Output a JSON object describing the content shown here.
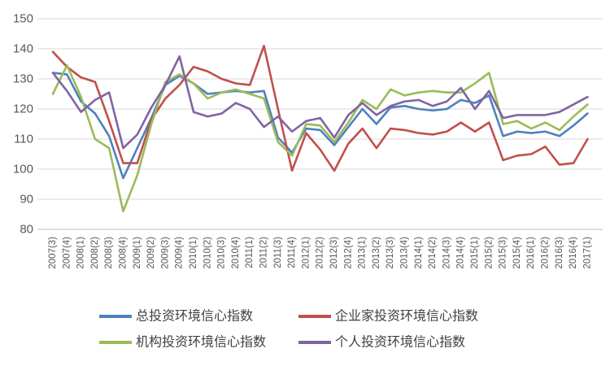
{
  "chart_data": {
    "type": "line",
    "title": "",
    "xlabel": "",
    "ylabel": "",
    "ylim": [
      80,
      150
    ],
    "y_ticks": [
      80,
      90,
      100,
      110,
      120,
      130,
      140,
      150
    ],
    "grid": "horizontal",
    "legend_position": "bottom",
    "x_labels": [
      "2007(3)",
      "2007(4)",
      "2008(1)",
      "2008(2)",
      "2008(3)",
      "2008(4)",
      "2009(1)",
      "2009(2)",
      "2009(3)",
      "2009(4)",
      "2010(1)",
      "2010(2)",
      "2010(3)",
      "2010(4)",
      "2011(1)",
      "2011(2)",
      "2011(3)",
      "2011(4)",
      "2012(1)",
      "2012(2)",
      "2012(3)",
      "2012(4)",
      "2013(1)",
      "2013(2)",
      "2013(3)",
      "2013(4)",
      "2014(1)",
      "2014(2)",
      "2014(3)",
      "2014(4)",
      "2015(1)",
      "2015(2)",
      "2015(3)",
      "2015(4)",
      "2016(1)",
      "2016(2)",
      "2016(3)",
      "2016(4)",
      "2017(1)"
    ],
    "series": [
      {
        "name": "总投资环境信心指数",
        "color": "#4F81BD",
        "values": [
          132,
          131.5,
          122.5,
          118.5,
          111,
          97,
          107,
          117,
          128,
          131,
          128.5,
          125,
          125.5,
          126,
          125.5,
          126,
          110.5,
          105.5,
          113.5,
          113,
          108,
          114,
          120,
          115,
          120.5,
          121,
          120,
          119.5,
          120,
          123,
          122,
          124.5,
          111,
          112.5,
          112,
          112.5,
          111,
          114.5,
          118.5
        ]
      },
      {
        "name": "企业家投资环境信心指数",
        "color": "#C0504D",
        "values": [
          139,
          134,
          130.5,
          129,
          116,
          102,
          102,
          116.5,
          123.5,
          128,
          134,
          132.5,
          130,
          128.5,
          128,
          141,
          120,
          99.5,
          112,
          106.5,
          99.5,
          108.5,
          113.5,
          107,
          113.5,
          113,
          112,
          111.5,
          112.5,
          115.5,
          112.5,
          115.5,
          103,
          104.5,
          105,
          107.5,
          101.5,
          102,
          110
        ]
      },
      {
        "name": "机构投资环境信心指数",
        "color": "#9BBB59",
        "values": [
          125,
          134.5,
          124,
          110,
          107,
          86,
          98,
          115,
          129,
          131.5,
          128.5,
          123.5,
          125.5,
          126.5,
          125,
          123.5,
          109,
          104.5,
          115,
          114.5,
          109,
          115.5,
          123,
          120,
          126.5,
          124.5,
          125.5,
          126,
          125.5,
          125.5,
          128.5,
          132,
          115,
          116,
          113.5,
          115.5,
          113,
          117.5,
          121.5
        ]
      },
      {
        "name": "个人投资环境信心指数",
        "color": "#8064A2",
        "values": [
          132,
          126,
          119,
          123,
          125.5,
          107,
          111.5,
          120.5,
          128,
          137.5,
          119,
          117.5,
          118.5,
          122,
          120,
          114,
          117.5,
          112.5,
          116,
          117,
          110.5,
          118,
          122,
          118,
          121,
          122.5,
          123,
          121,
          122.5,
          127,
          120,
          126,
          117,
          118,
          118,
          118,
          119,
          121.5,
          124
        ]
      }
    ]
  },
  "style": {
    "gridline_color": "#D9D9D9",
    "axis_line_color": "#BFBFBF",
    "tick_text_color": "#595959",
    "legend_text_color": "#404040",
    "background": "#FFFFFF"
  }
}
